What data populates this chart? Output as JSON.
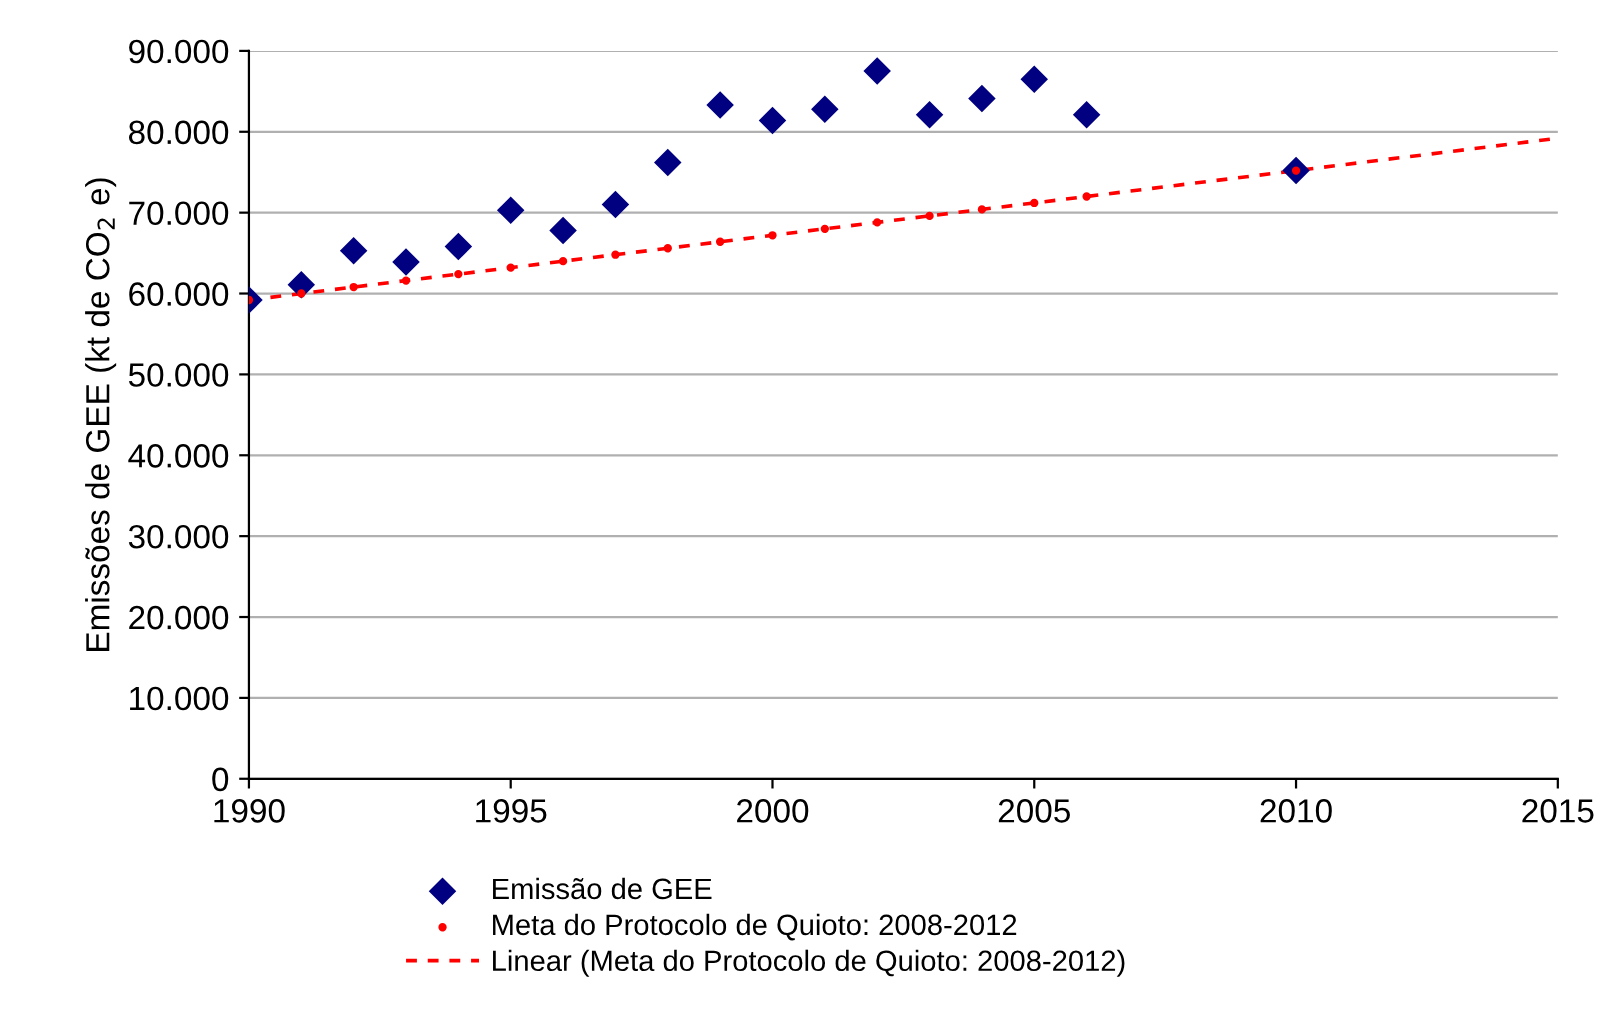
{
  "chart_data": {
    "type": "scatter",
    "ylabel": "Emissões de GEE (kt de CO$_{2}$ e)",
    "xlim": [
      1990,
      2015
    ],
    "xticks": [
      1990,
      1995,
      2000,
      2005,
      2010,
      2015
    ],
    "ylim": [
      0,
      90000
    ],
    "yticks": [
      {
        "value": 0,
        "label": "0"
      },
      {
        "value": 10000,
        "label": "10.000"
      },
      {
        "value": 20000,
        "label": "20.000"
      },
      {
        "value": 30000,
        "label": "30.000"
      },
      {
        "value": 40000,
        "label": "40.000"
      },
      {
        "value": 50000,
        "label": "50.000"
      },
      {
        "value": 60000,
        "label": "60.000"
      },
      {
        "value": 70000,
        "label": "70.000"
      },
      {
        "value": 80000,
        "label": "80.000"
      },
      {
        "value": 90000,
        "label": "90.000"
      }
    ],
    "grid": "y",
    "legend": "bottom",
    "series": [
      {
        "name": "Emissão de GEE",
        "marker": "diamond",
        "color": "#000080",
        "x": [
          1990,
          1991,
          1992,
          1993,
          1994,
          1995,
          1996,
          1997,
          1998,
          1999,
          2000,
          2001,
          2002,
          2003,
          2004,
          2005,
          2006,
          2010
        ],
        "values": [
          59200,
          61100,
          65300,
          63900,
          65800,
          70300,
          67800,
          71000,
          76200,
          83300,
          81400,
          82800,
          87500,
          82100,
          84100,
          86500,
          82100,
          75200
        ]
      },
      {
        "name": "Meta do Protocolo de Quioto: 2008-2012",
        "marker": "circle",
        "color": "#ff0000",
        "x": [
          1990,
          1991,
          1992,
          1993,
          1994,
          1995,
          1996,
          1997,
          1998,
          1999,
          2000,
          2001,
          2002,
          2003,
          2004,
          2005,
          2006,
          2010
        ],
        "values": [
          59200,
          60000,
          60800,
          61600,
          62400,
          63200,
          64000,
          64800,
          65600,
          66400,
          67200,
          68000,
          68800,
          69600,
          70400,
          71200,
          72000,
          75200
        ]
      },
      {
        "name": "Linear (Meta do Protocolo de Quioto: 2008-2012)",
        "type": "line",
        "line_style": "dashed",
        "marker": "none",
        "color": "#ff0000",
        "x": [
          1990,
          2015
        ],
        "values": [
          59200,
          79200
        ]
      }
    ]
  }
}
